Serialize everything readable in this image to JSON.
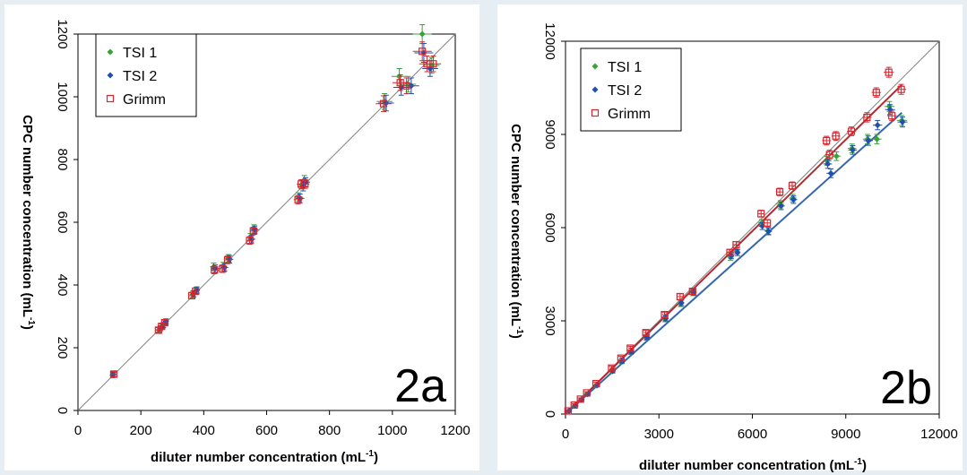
{
  "colors": {
    "tsi1": "#3aa13a",
    "tsi2": "#1f4fb0",
    "grimm": "#d9262f",
    "identity": "#808080",
    "fit_red": "#b02a2f",
    "fit_blue": "#3566b0"
  },
  "chart_data": [
    {
      "id": "2a",
      "type": "scatter",
      "panel_label": "2a",
      "xlabel": "diluter number concentration (mL",
      "xlabel_sup": "-1",
      "xlabel_end": ")",
      "ylabel": "CPC number concentration (mL",
      "ylabel_sup": "-1",
      "ylabel_end": ")",
      "xlim": [
        0,
        1200
      ],
      "ylim": [
        0,
        1200
      ],
      "xticks": [
        0,
        200,
        400,
        600,
        800,
        1000,
        1200
      ],
      "yticks": [
        0,
        200,
        400,
        600,
        800,
        1000,
        1200
      ],
      "xtick_labels": [
        "0",
        "200",
        "400",
        "600",
        "800",
        "1000",
        "1200"
      ],
      "ytick_labels": [
        "0",
        "200",
        "400",
        "600",
        "800",
        "1000",
        "1200"
      ],
      "legend_position": "top-left",
      "lines": [
        {
          "type": "identity",
          "x": [
            0,
            1200
          ],
          "y": [
            0,
            1200
          ],
          "color": "identity"
        }
      ],
      "series": [
        {
          "name": "TSI 1",
          "marker": "diamond",
          "color": "tsi1",
          "x": [
            110,
            258,
            268,
            278,
            365,
            375,
            432,
            462,
            478,
            548,
            560,
            702,
            712,
            720,
            975,
            1022,
            1050,
            1095,
            1125
          ],
          "y": [
            112,
            258,
            270,
            282,
            370,
            382,
            458,
            460,
            485,
            552,
            580,
            680,
            720,
            735,
            985,
            1065,
            1040,
            1200,
            1100
          ],
          "err": [
            8,
            8,
            8,
            8,
            10,
            10,
            12,
            12,
            12,
            12,
            12,
            14,
            14,
            14,
            25,
            25,
            25,
            30,
            25
          ]
        },
        {
          "name": "TSI 2",
          "marker": "diamond",
          "color": "tsi2",
          "x": [
            112,
            262,
            272,
            280,
            368,
            378,
            436,
            466,
            482,
            552,
            562,
            706,
            716,
            724,
            980,
            1028,
            1060,
            1100,
            1120
          ],
          "y": [
            114,
            262,
            272,
            284,
            372,
            384,
            452,
            456,
            482,
            546,
            576,
            676,
            714,
            728,
            980,
            1030,
            1035,
            1140,
            1090
          ],
          "err": [
            8,
            8,
            8,
            8,
            10,
            10,
            12,
            12,
            12,
            12,
            12,
            14,
            14,
            14,
            25,
            25,
            25,
            30,
            25
          ]
        },
        {
          "name": "Grimm",
          "marker": "square-open",
          "color": "grimm",
          "x": [
            114,
            256,
            266,
            276,
            362,
            374,
            434,
            460,
            476,
            546,
            558,
            700,
            710,
            722,
            972,
            1025,
            1045,
            1095,
            1110,
            1130
          ],
          "y": [
            116,
            256,
            268,
            280,
            366,
            380,
            448,
            452,
            480,
            542,
            572,
            672,
            722,
            722,
            978,
            1045,
            1035,
            1145,
            1105,
            1105
          ],
          "err": [
            8,
            8,
            8,
            8,
            10,
            10,
            12,
            12,
            12,
            12,
            12,
            14,
            14,
            14,
            25,
            25,
            25,
            30,
            25,
            25
          ]
        }
      ]
    },
    {
      "id": "2b",
      "type": "scatter",
      "panel_label": "2b",
      "xlabel": "diluter number concentration (mL",
      "xlabel_sup": "-1",
      "xlabel_end": ")",
      "ylabel": "CPC number concentration (mL",
      "ylabel_sup": "-1",
      "ylabel_end": ")",
      "xlim": [
        0,
        12000
      ],
      "ylim": [
        0,
        12000
      ],
      "xticks": [
        0,
        3000,
        6000,
        9000,
        12000
      ],
      "yticks": [
        0,
        3000,
        6000,
        9000,
        12000
      ],
      "xtick_labels": [
        "0",
        "3000",
        "6000",
        "9000",
        "12000"
      ],
      "ytick_labels": [
        "0",
        "3000",
        "6000",
        "9000",
        "12000"
      ],
      "legend_position": "top-left",
      "lines": [
        {
          "type": "identity",
          "x": [
            0,
            12000
          ],
          "y": [
            0,
            12000
          ],
          "color": "identity"
        },
        {
          "type": "fit",
          "x": [
            0,
            10800
          ],
          "y": [
            0,
            10600
          ],
          "color": "fit_red"
        },
        {
          "type": "fit",
          "x": [
            0,
            10800
          ],
          "y": [
            0,
            9700
          ],
          "color": "fit_blue"
        }
      ],
      "series": [
        {
          "name": "TSI 1",
          "marker": "diamond",
          "color": "tsi1",
          "x": [
            100,
            300,
            500,
            700,
            1000,
            1500,
            1800,
            2100,
            2600,
            3200,
            3700,
            4100,
            5300,
            5500,
            6300,
            6500,
            6900,
            7300,
            8400,
            8700,
            9200,
            9700,
            10000,
            10400,
            10800
          ],
          "y": [
            95,
            270,
            460,
            640,
            920,
            1380,
            1680,
            1980,
            2450,
            3050,
            3550,
            3900,
            5050,
            5250,
            6150,
            5900,
            6750,
            6950,
            8150,
            8300,
            8550,
            8850,
            8850,
            9900,
            9450
          ],
          "err": [
            40,
            40,
            40,
            40,
            50,
            60,
            60,
            60,
            70,
            80,
            90,
            90,
            100,
            100,
            110,
            110,
            120,
            120,
            140,
            140,
            140,
            150,
            150,
            160,
            160
          ]
        },
        {
          "name": "TSI 2",
          "marker": "diamond",
          "color": "tsi2",
          "x": [
            120,
            320,
            520,
            720,
            1020,
            1520,
            1820,
            2120,
            2620,
            3220,
            3720,
            4120,
            5320,
            5520,
            6320,
            6520,
            6920,
            7320,
            8420,
            8520,
            9220,
            9720,
            10020,
            10420,
            10820
          ],
          "y": [
            100,
            280,
            470,
            650,
            930,
            1390,
            1700,
            2000,
            2470,
            3080,
            3580,
            3920,
            5100,
            5200,
            6050,
            5880,
            6700,
            6900,
            8050,
            7750,
            8500,
            8800,
            9300,
            9800,
            9400
          ],
          "err": [
            40,
            40,
            40,
            40,
            50,
            60,
            60,
            60,
            70,
            80,
            90,
            90,
            100,
            100,
            110,
            110,
            120,
            120,
            140,
            140,
            140,
            150,
            150,
            160,
            160
          ]
        },
        {
          "name": "Grimm",
          "marker": "square-open",
          "color": "grimm",
          "x": [
            80,
            280,
            480,
            680,
            980,
            1480,
            1780,
            2080,
            2580,
            3180,
            3680,
            4080,
            5280,
            5480,
            6280,
            6480,
            6880,
            7280,
            8380,
            8680,
            9180,
            9680,
            9980,
            10380,
            10780,
            10480,
            8480
          ],
          "y": [
            100,
            290,
            480,
            680,
            980,
            1480,
            1800,
            2120,
            2620,
            3200,
            3780,
            3950,
            5200,
            5450,
            6450,
            6150,
            7150,
            7350,
            8800,
            8950,
            9100,
            9550,
            10350,
            11000,
            10450,
            9600,
            8350
          ],
          "err": [
            40,
            40,
            40,
            40,
            50,
            60,
            60,
            60,
            70,
            80,
            90,
            90,
            100,
            100,
            110,
            110,
            120,
            120,
            140,
            140,
            140,
            150,
            150,
            160,
            160,
            150,
            140
          ]
        }
      ]
    }
  ]
}
